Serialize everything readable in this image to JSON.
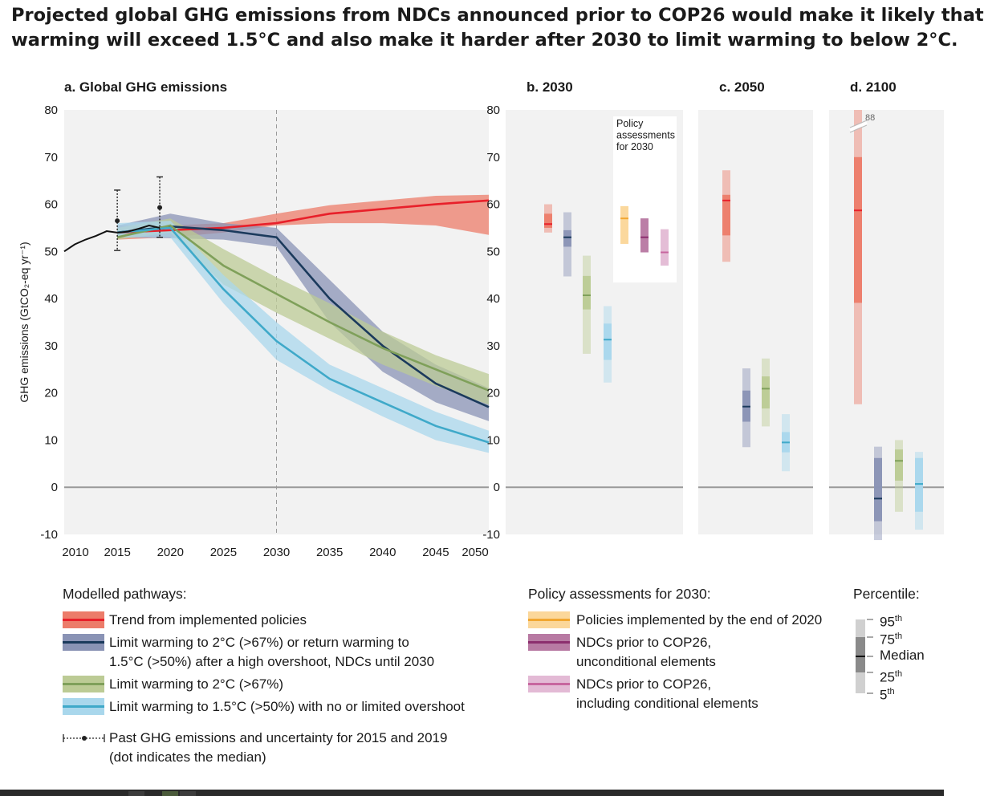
{
  "title": {
    "line1": "Projected global GHG emissions from NDCs announced prior to COP26 would make it likely that",
    "line2": "warming will exceed 1.5°C and also make it harder after 2030 to limit warming to below 2°C."
  },
  "colors": {
    "red": "#e8202a",
    "red_band": "#ec7c6a",
    "navy": "#1b3a5c",
    "navy_band": "#8a93b5",
    "green": "#7fa05a",
    "green_band": "#bccb95",
    "cyan": "#3fa9c9",
    "cyan_band": "#a9d7ec",
    "orange": "#f2a731",
    "orange_band": "#fbd79a",
    "purple": "#8c2e6e",
    "purple_band": "#b87aa3",
    "pink": "#c7669f",
    "pink_band": "#e3bad5",
    "panel_bg": "#f2f2f2",
    "zero_line": "#999999"
  },
  "chart_data": [
    {
      "type": "area",
      "panel": "a",
      "title": "a. Global GHG emissions",
      "ylabel": "GHG emissions (GtCO₂-eq yr⁻¹)",
      "xlim": [
        2010,
        2050
      ],
      "ylim": [
        -10,
        80
      ],
      "y_ticks": [
        -10,
        0,
        10,
        20,
        30,
        40,
        50,
        60,
        70,
        80
      ],
      "x_ticks": [
        2010,
        2015,
        2020,
        2025,
        2030,
        2035,
        2040,
        2045,
        2050
      ],
      "reference_line_x": 2030,
      "historical": {
        "x": [
          2010,
          2011,
          2012,
          2013,
          2014,
          2015,
          2016,
          2017,
          2018,
          2019
        ],
        "y": [
          50,
          51.5,
          52.5,
          53.3,
          54.3,
          54,
          54.2,
          54.8,
          55.5,
          55
        ]
      },
      "past_uncertainty": [
        {
          "x": 2015,
          "median": 56.5,
          "low": 50.2,
          "high": 63
        },
        {
          "x": 2019,
          "median": 59.3,
          "low": 53,
          "high": 65.8
        }
      ],
      "series": [
        {
          "name": "Trend from implemented policies",
          "color_key": "red",
          "x": [
            2015,
            2020,
            2025,
            2030,
            2035,
            2040,
            2045,
            2050
          ],
          "median": [
            54,
            54.5,
            55,
            56,
            58,
            59,
            60,
            60.8
          ],
          "low": [
            52.5,
            53,
            54,
            55.5,
            56,
            56,
            55.5,
            53.5
          ],
          "high": [
            55.5,
            55.5,
            56,
            58,
            59.8,
            60.8,
            61.8,
            62
          ]
        },
        {
          "name": "Limit warming to 2°C (>67%) or return warming to 1.5°C (>50%) after a high overshoot, NDCs until 2030",
          "color_key": "navy",
          "x": [
            2015,
            2020,
            2025,
            2030,
            2035,
            2040,
            2045,
            2050
          ],
          "median": [
            54,
            55.3,
            54.5,
            53,
            40,
            30,
            22,
            17
          ],
          "low": [
            53,
            52.8,
            52.5,
            51,
            35,
            24.5,
            18,
            14
          ],
          "high": [
            55.5,
            58,
            56,
            55,
            44,
            33,
            26,
            21
          ]
        },
        {
          "name": "Limit warming to 2°C (>67%)",
          "color_key": "green",
          "x": [
            2015,
            2020,
            2025,
            2030,
            2035,
            2040,
            2045,
            2050
          ],
          "median": [
            53,
            55.5,
            47,
            41,
            35,
            29.5,
            25,
            20.5
          ],
          "low": [
            52.5,
            54,
            43,
            37,
            31.5,
            26,
            21.5,
            17.5
          ],
          "high": [
            55,
            57,
            50.5,
            44.5,
            39,
            33,
            28,
            24
          ]
        },
        {
          "name": "Limit warming to 1.5°C (>50%) with no or limited overshoot",
          "color_key": "cyan",
          "x": [
            2015,
            2020,
            2025,
            2030,
            2035,
            2040,
            2045,
            2050
          ],
          "median": [
            54,
            55,
            42,
            31,
            23,
            18,
            13,
            9.5
          ],
          "low": [
            53,
            53,
            39,
            27,
            20.5,
            15,
            10,
            7.3
          ],
          "high": [
            56,
            56.5,
            45,
            35,
            26,
            21,
            16,
            12
          ]
        }
      ]
    },
    {
      "type": "box",
      "panel": "b",
      "title": "b. 2030",
      "ylim": [
        -10,
        80
      ],
      "inset_label": "Policy assessments for 2030",
      "bars": [
        {
          "color_key": "red",
          "p5": 54,
          "p25": 55,
          "median": 55.8,
          "p75": 58,
          "p95": 60
        },
        {
          "color_key": "navy",
          "p5": 44.7,
          "p25": 51,
          "median": 53,
          "p75": 54.5,
          "p95": 58.3
        },
        {
          "color_key": "green",
          "p5": 28.3,
          "p25": 37.7,
          "median": 40.7,
          "p75": 44.8,
          "p95": 49.1
        },
        {
          "color_key": "cyan",
          "p5": 22.2,
          "p25": 27,
          "median": 31.3,
          "p75": 34.7,
          "p95": 38.4
        },
        {
          "color_key": "orange",
          "p5": 51.6,
          "p25": 51.6,
          "median": 57,
          "p75": 59.6,
          "p95": 59.6
        },
        {
          "color_key": "purple",
          "p5": 49.8,
          "p25": 49.8,
          "median": 53,
          "p75": 57,
          "p95": 57
        },
        {
          "color_key": "pink",
          "p5": 47,
          "p25": 47,
          "median": 49.8,
          "p75": 54.7,
          "p95": 54.7
        }
      ]
    },
    {
      "type": "box",
      "panel": "c",
      "title": "c. 2050",
      "ylim": [
        -10,
        80
      ],
      "bars": [
        {
          "color_key": "red",
          "p5": 47.8,
          "p25": 53.4,
          "median": 60.8,
          "p75": 62,
          "p95": 67.2
        },
        {
          "color_key": "navy",
          "p5": 8.5,
          "p25": 13.9,
          "median": 17.1,
          "p75": 20.5,
          "p95": 25.2
        },
        {
          "color_key": "green",
          "p5": 12.9,
          "p25": 16.7,
          "median": 20.9,
          "p75": 23.5,
          "p95": 27.3
        },
        {
          "color_key": "cyan",
          "p5": 3.4,
          "p25": 7.4,
          "median": 9.5,
          "p75": 11.7,
          "p95": 15.5
        }
      ]
    },
    {
      "type": "box",
      "panel": "d",
      "title": "d. 2100",
      "ylim": [
        -10,
        80
      ],
      "break_label": "88",
      "bars": [
        {
          "color_key": "red",
          "p5": 17.6,
          "p25": 39.1,
          "median": 58.7,
          "p75": 70,
          "p95": 88
        },
        {
          "color_key": "navy",
          "p5": -11.2,
          "p25": -7.2,
          "median": -2.4,
          "p75": 6.2,
          "p95": 8.6
        },
        {
          "color_key": "green",
          "p5": -5.2,
          "p25": 1.4,
          "median": 5.6,
          "p75": 8,
          "p95": 10
        },
        {
          "color_key": "cyan",
          "p5": -9,
          "p25": -5.2,
          "median": 0.7,
          "p75": 6.2,
          "p95": 7.5
        }
      ]
    }
  ],
  "legend": {
    "modelled_heading": "Modelled pathways:",
    "modelled_items": [
      {
        "label": "Trend from implemented policies",
        "color_key": "red"
      },
      {
        "label": "Limit warming to 2°C (>67%) or return warming to",
        "label2": "1.5°C (>50%) after a high overshoot, NDCs until 2030",
        "color_key": "navy"
      },
      {
        "label": "Limit warming to 2°C (>67%)",
        "color_key": "green"
      },
      {
        "label": "Limit warming to 1.5°C (>50%) with no or limited overshoot",
        "color_key": "cyan"
      }
    ],
    "past_label": "Past GHG emissions and uncertainty for 2015 and 2019",
    "past_label2": "(dot indicates the median)",
    "policy_heading": "Policy assessments for 2030:",
    "policy_items": [
      {
        "label": "Policies implemented by the end of 2020",
        "color_key": "orange"
      },
      {
        "label": "NDCs prior to COP26,",
        "label2": "unconditional elements",
        "color_key": "purple"
      },
      {
        "label": "NDCs prior to COP26,",
        "label2": "including conditional elements",
        "color_key": "pink"
      }
    ],
    "percentile_heading": "Percentile:",
    "percentile_labels": {
      "p95": "95",
      "p75": "75",
      "median": "Median",
      "p25": "25",
      "p5": "5",
      "suffix": "th"
    }
  }
}
